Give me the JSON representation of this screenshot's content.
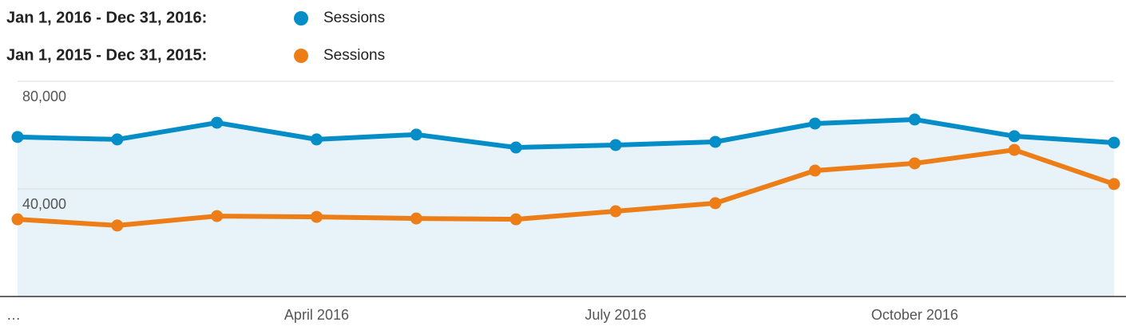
{
  "chart_data": {
    "type": "line",
    "categories": [
      "…",
      null,
      null,
      "April 2016",
      null,
      null,
      "July 2016",
      null,
      null,
      "October 2016",
      null,
      null
    ],
    "series": [
      {
        "period": "Jan 1, 2016 - Dec 31, 2016:",
        "name": "Sessions",
        "color": "#058dc7",
        "area": true,
        "values": [
          59300,
          58400,
          64600,
          58400,
          60200,
          55400,
          56300,
          57500,
          64300,
          65800,
          59600,
          57200
        ]
      },
      {
        "period": "Jan 1, 2015 - Dec 31, 2015:",
        "name": "Sessions",
        "color": "#ed7e17",
        "values": [
          28700,
          26400,
          29900,
          29600,
          29000,
          28700,
          31700,
          34700,
          46800,
          49500,
          54500,
          41800
        ]
      }
    ],
    "ylim": [
      0,
      80000
    ],
    "yticks": [
      {
        "value": 40000,
        "label": "40,000"
      },
      {
        "value": 80000,
        "label": "80,000"
      }
    ],
    "grid": true
  }
}
